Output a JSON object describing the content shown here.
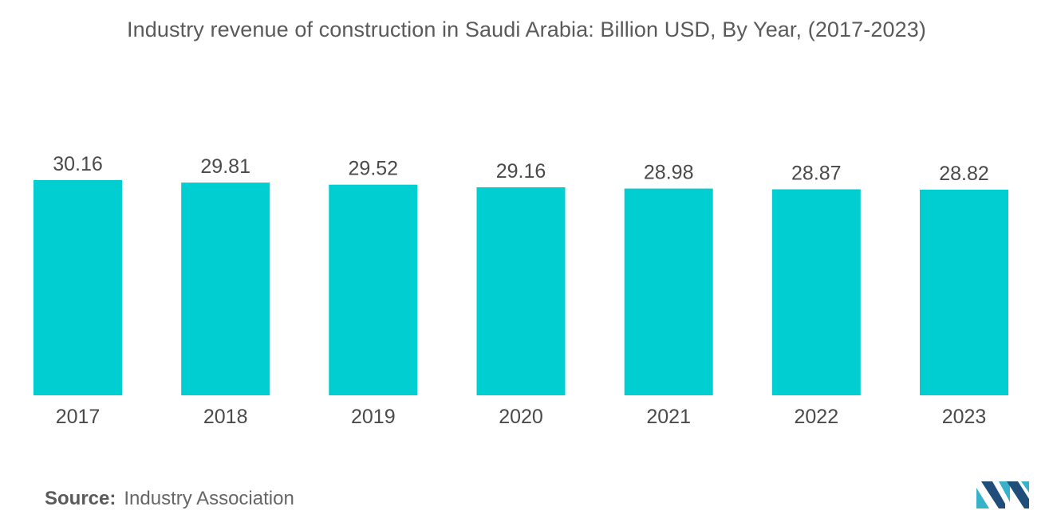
{
  "chart_data": {
    "type": "bar",
    "title": "Industry revenue of construction in Saudi Arabia: Billion USD, By Year, (2017-2023)",
    "categories": [
      "2017",
      "2018",
      "2019",
      "2020",
      "2021",
      "2022",
      "2023"
    ],
    "values": [
      30.16,
      29.81,
      29.52,
      29.16,
      28.98,
      28.87,
      28.82
    ],
    "value_labels": [
      "30.16",
      "29.81",
      "29.52",
      "29.16",
      "28.98",
      "28.87",
      "28.82"
    ],
    "xlabel": "",
    "ylabel": "",
    "grid": false,
    "legend": "none",
    "colors": {
      "bar": "#00CED1"
    }
  },
  "source": {
    "label": "Source:",
    "text": "Industry Association"
  },
  "logo": {
    "icon": "mordor-intelligence-logo-icon",
    "colors": {
      "dark": "#1E4E79",
      "light": "#38B2C8"
    }
  }
}
